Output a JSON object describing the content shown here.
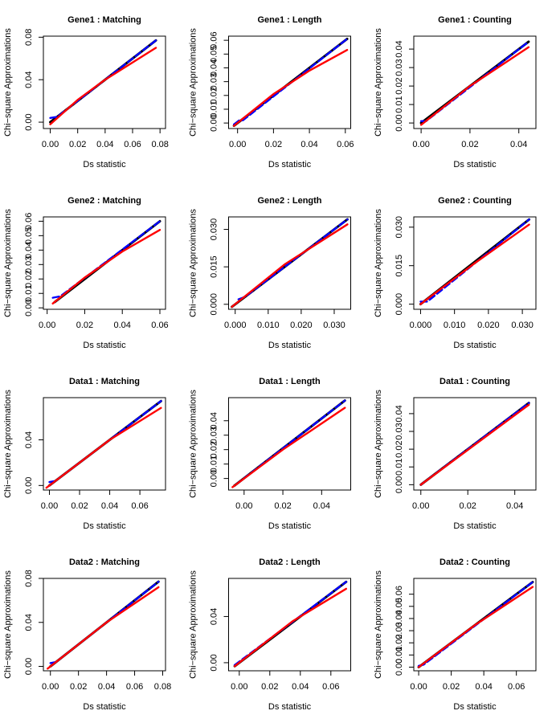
{
  "chart_data": [
    {
      "type": "line",
      "title": "Gene1 : Matching",
      "xlabel": "Ds statistic",
      "ylabel": "Chi−square Approximations",
      "xlim": [
        -0.005,
        0.084
      ],
      "ylim": [
        -0.006,
        0.081
      ],
      "xticks": [
        {
          "value": 0,
          "label": "0.00"
        },
        0.02,
        0.04,
        0.06,
        0.08
      ],
      "yticks": [
        {
          "value": 0,
          "label": "0.00"
        },
        0.04,
        0.08
      ],
      "series": [
        {
          "color": "#000000",
          "x": [
            0,
            0.077
          ],
          "values": [
            0,
            0.077
          ]
        },
        {
          "color": "#0000ff",
          "dash": true,
          "x": [
            0,
            0.005,
            0.077
          ],
          "values": [
            0.004,
            0.005,
            0.077
          ]
        },
        {
          "color": "#ff0000",
          "x": [
            0,
            0.02,
            0.04,
            0.077
          ],
          "values": [
            -0.002,
            0.021,
            0.04,
            0.07
          ]
        }
      ]
    },
    {
      "type": "line",
      "title": "Gene1 : Length",
      "xlabel": "Ds statistic",
      "ylabel": "Chi−square Approximations",
      "xlim": [
        -0.005,
        0.063
      ],
      "ylim": [
        -0.004,
        0.063
      ],
      "xticks": [
        {
          "value": 0,
          "label": "0.00"
        },
        0.02,
        0.04,
        0.06
      ],
      "yticks": [
        {
          "value": 0,
          "label": "0.00"
        },
        0.01,
        0.02,
        0.03,
        0.04,
        0.05,
        0.06
      ],
      "series": [
        {
          "color": "#000000",
          "x": [
            -0.002,
            0.061
          ],
          "values": [
            -0.002,
            0.061
          ]
        },
        {
          "color": "#0000ff",
          "dash": true,
          "x": [
            -0.002,
            0.001,
            0.003,
            0.061
          ],
          "values": [
            -0.001,
            0.002,
            0.002,
            0.061
          ]
        },
        {
          "color": "#ff0000",
          "x": [
            -0.002,
            0.02,
            0.04,
            0.061
          ],
          "values": [
            -0.002,
            0.021,
            0.038,
            0.053
          ]
        }
      ]
    },
    {
      "type": "line",
      "title": "Gene1 : Counting",
      "xlabel": "Ds statistic",
      "ylabel": "Chi−square Approximations",
      "xlim": [
        -0.003,
        0.047
      ],
      "ylim": [
        -0.003,
        0.047
      ],
      "xticks": [
        {
          "value": 0,
          "label": "0.00"
        },
        0.02,
        0.04
      ],
      "yticks": [
        {
          "value": 0,
          "label": "0.00"
        },
        0.01,
        0.02,
        0.03,
        0.04
      ],
      "series": [
        {
          "color": "#000000",
          "x": [
            0,
            0.044
          ],
          "values": [
            0,
            0.044
          ]
        },
        {
          "color": "#0000ff",
          "dash": true,
          "x": [
            0,
            0.002,
            0.044
          ],
          "values": [
            0.001,
            0.001,
            0.044
          ]
        },
        {
          "color": "#ff0000",
          "x": [
            0,
            0.02,
            0.044
          ],
          "values": [
            -0.001,
            0.02,
            0.041
          ]
        }
      ]
    },
    {
      "type": "line",
      "title": "Gene2 : Matching",
      "xlabel": "Ds statistic",
      "ylabel": "Chi−square Approximations",
      "xlim": [
        -0.002,
        0.063
      ],
      "ylim": [
        -0.001,
        0.063
      ],
      "xticks": [
        {
          "value": 0,
          "label": "0.00"
        },
        0.02,
        0.04,
        0.06
      ],
      "yticks": [
        {
          "value": 0,
          "label": "0.00"
        },
        0.01,
        0.02,
        0.03,
        0.04,
        0.05,
        0.06
      ],
      "series": [
        {
          "color": "#000000",
          "x": [
            0.004,
            0.06
          ],
          "values": [
            0.004,
            0.06
          ]
        },
        {
          "color": "#0000ff",
          "dash": true,
          "x": [
            0.003,
            0.007,
            0.06
          ],
          "values": [
            0.007,
            0.008,
            0.06
          ]
        },
        {
          "color": "#ff0000",
          "x": [
            0.003,
            0.02,
            0.04,
            0.06
          ],
          "values": [
            0.003,
            0.021,
            0.039,
            0.054
          ]
        }
      ]
    },
    {
      "type": "line",
      "title": "Gene2 : Length",
      "xlabel": "Ds statistic",
      "ylabel": "Chi−square Approximations",
      "xlim": [
        -0.002,
        0.035
      ],
      "ylim": [
        -0.002,
        0.035
      ],
      "xticks": [
        {
          "value": 0,
          "label": "0.000"
        },
        {
          "value": 0.01,
          "label": "0.010"
        },
        {
          "value": 0.02,
          "label": "0.020"
        },
        {
          "value": 0.03,
          "label": "0.030"
        }
      ],
      "yticks": [
        {
          "value": 0,
          "label": "0.000"
        },
        0.015,
        {
          "value": 0.03,
          "label": "0.030"
        }
      ],
      "series": [
        {
          "color": "#000000",
          "x": [
            -0.001,
            0.034
          ],
          "values": [
            -0.001,
            0.034
          ]
        },
        {
          "color": "#0000ff",
          "dash": true,
          "x": [
            0.001,
            0.003,
            0.034
          ],
          "values": [
            0.002,
            0.003,
            0.034
          ]
        },
        {
          "color": "#ff0000",
          "x": [
            -0.001,
            0.015,
            0.034
          ],
          "values": [
            -0.001,
            0.016,
            0.032
          ]
        }
      ]
    },
    {
      "type": "line",
      "title": "Gene2 : Counting",
      "xlabel": "Ds statistic",
      "ylabel": "Chi−square Approximations",
      "xlim": [
        -0.002,
        0.034
      ],
      "ylim": [
        -0.002,
        0.034
      ],
      "xticks": [
        {
          "value": 0,
          "label": "0.000"
        },
        {
          "value": 0.01,
          "label": "0.010"
        },
        {
          "value": 0.02,
          "label": "0.020"
        },
        {
          "value": 0.03,
          "label": "0.030"
        }
      ],
      "yticks": [
        {
          "value": 0,
          "label": "0.000"
        },
        0.015,
        {
          "value": 0.03,
          "label": "0.030"
        }
      ],
      "series": [
        {
          "color": "#000000",
          "x": [
            0,
            0.032
          ],
          "values": [
            0,
            0.033
          ]
        },
        {
          "color": "#0000ff",
          "dash": true,
          "x": [
            0,
            0.002,
            0.032
          ],
          "values": [
            0.001,
            0.001,
            0.033
          ]
        },
        {
          "color": "#ff0000",
          "x": [
            0,
            0.016,
            0.032
          ],
          "values": [
            0,
            0.016,
            0.031
          ]
        }
      ]
    },
    {
      "type": "line",
      "title": "Data1 : Matching",
      "xlabel": "Ds statistic",
      "ylabel": "Chi−square Approximations",
      "xlim": [
        -0.004,
        0.077
      ],
      "ylim": [
        -0.004,
        0.077
      ],
      "xticks": [
        {
          "value": 0,
          "label": "0.00"
        },
        0.02,
        0.04,
        0.06
      ],
      "yticks": [
        {
          "value": 0,
          "label": "0.00"
        },
        0.04
      ],
      "series": [
        {
          "color": "#000000",
          "x": [
            0,
            0.074
          ],
          "values": [
            0,
            0.074
          ]
        },
        {
          "color": "#0000ff",
          "dash": true,
          "x": [
            0,
            0.004,
            0.074
          ],
          "values": [
            0.003,
            0.004,
            0.074
          ]
        },
        {
          "color": "#ff0000",
          "x": [
            -0.002,
            0.04,
            0.074
          ],
          "values": [
            -0.002,
            0.04,
            0.068
          ]
        }
      ]
    },
    {
      "type": "line",
      "title": "Data1 : Length",
      "xlabel": "Ds statistic",
      "ylabel": "Chi−square Approximations",
      "xlim": [
        -0.008,
        0.055
      ],
      "ylim": [
        -0.008,
        0.056
      ],
      "xticks": [
        {
          "value": 0,
          "label": "0.00"
        },
        0.02,
        0.04
      ],
      "yticks": [
        {
          "value": 0,
          "label": "0.00"
        },
        0.01,
        0.02,
        0.03,
        0.04
      ],
      "series": [
        {
          "color": "#000000",
          "x": [
            -0.005,
            0.052
          ],
          "values": [
            -0.005,
            0.054
          ]
        },
        {
          "color": "#0000ff",
          "dash": true,
          "x": [
            -0.004,
            0.052
          ],
          "values": [
            -0.004,
            0.054
          ]
        },
        {
          "color": "#ff0000",
          "x": [
            -0.006,
            0.02,
            0.052
          ],
          "values": [
            -0.006,
            0.02,
            0.049
          ]
        }
      ]
    },
    {
      "type": "line",
      "title": "Data1 : Counting",
      "xlabel": "Ds statistic",
      "ylabel": "Chi−square Approximations",
      "xlim": [
        -0.003,
        0.049
      ],
      "ylim": [
        -0.003,
        0.049
      ],
      "xticks": [
        {
          "value": 0,
          "label": "0.00"
        },
        0.02,
        0.04
      ],
      "yticks": [
        {
          "value": 0,
          "label": "0.00"
        },
        0.01,
        0.02,
        0.03,
        0.04
      ],
      "series": [
        {
          "color": "#000000",
          "x": [
            0,
            0.046
          ],
          "values": [
            0,
            0.046
          ]
        },
        {
          "color": "#0000ff",
          "dash": true,
          "x": [
            0,
            0.046
          ],
          "values": [
            0,
            0.046
          ]
        },
        {
          "color": "#ff0000",
          "x": [
            0,
            0.046
          ],
          "values": [
            0,
            0.045
          ]
        }
      ]
    },
    {
      "type": "line",
      "title": "Data2 : Matching",
      "xlabel": "Ds statistic",
      "ylabel": "Chi−square Approximations",
      "xlim": [
        -0.005,
        0.082
      ],
      "ylim": [
        -0.004,
        0.08
      ],
      "xticks": [
        {
          "value": 0,
          "label": "0.00"
        },
        0.02,
        0.04,
        0.06,
        0.08
      ],
      "yticks": [
        {
          "value": 0,
          "label": "0.00"
        },
        0.04,
        0.08
      ],
      "series": [
        {
          "color": "#000000",
          "x": [
            0,
            0.077
          ],
          "values": [
            0,
            0.077
          ]
        },
        {
          "color": "#0000ff",
          "dash": true,
          "x": [
            0,
            0.004,
            0.077
          ],
          "values": [
            0.003,
            0.004,
            0.077
          ]
        },
        {
          "color": "#ff0000",
          "x": [
            -0.002,
            0.04,
            0.077
          ],
          "values": [
            -0.002,
            0.04,
            0.072
          ]
        }
      ]
    },
    {
      "type": "line",
      "title": "Data2 : Length",
      "xlabel": "Ds statistic",
      "ylabel": "Chi−square Approximations",
      "xlim": [
        -0.007,
        0.073
      ],
      "ylim": [
        -0.007,
        0.073
      ],
      "xticks": [
        {
          "value": 0,
          "label": "0.00"
        },
        0.02,
        0.04,
        0.06
      ],
      "yticks": [
        {
          "value": 0,
          "label": "0.00"
        },
        0.04
      ],
      "series": [
        {
          "color": "#000000",
          "x": [
            -0.003,
            0.07
          ],
          "values": [
            -0.003,
            0.07
          ]
        },
        {
          "color": "#0000ff",
          "dash": true,
          "x": [
            -0.003,
            0.07
          ],
          "values": [
            -0.002,
            0.07
          ]
        },
        {
          "color": "#ff0000",
          "x": [
            -0.003,
            0.035,
            0.07
          ],
          "values": [
            -0.003,
            0.036,
            0.064
          ]
        }
      ]
    },
    {
      "type": "line",
      "title": "Data2 : Counting",
      "xlabel": "Ds statistic",
      "ylabel": "Chi−square Approximations",
      "xlim": [
        -0.003,
        0.072
      ],
      "ylim": [
        -0.003,
        0.073
      ],
      "xticks": [
        {
          "value": 0,
          "label": "0.00"
        },
        0.02,
        0.04,
        0.06
      ],
      "yticks": [
        {
          "value": 0,
          "label": "0.00"
        },
        0.01,
        0.02,
        0.03,
        0.04,
        0.05,
        0.06
      ],
      "series": [
        {
          "color": "#000000",
          "x": [
            0,
            0.07
          ],
          "values": [
            0,
            0.07
          ]
        },
        {
          "color": "#0000ff",
          "dash": true,
          "x": [
            0,
            0.003,
            0.07
          ],
          "values": [
            0.001,
            0.002,
            0.07
          ]
        },
        {
          "color": "#ff0000",
          "x": [
            0,
            0.035,
            0.07
          ],
          "values": [
            0,
            0.035,
            0.066
          ]
        }
      ]
    }
  ]
}
